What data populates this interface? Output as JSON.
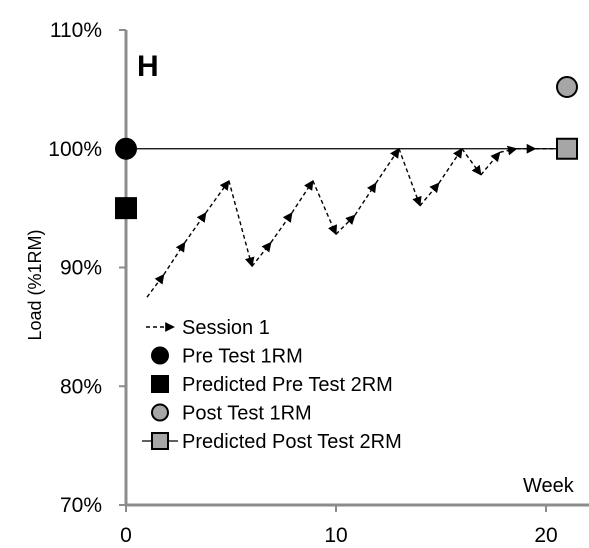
{
  "chart_data": {
    "type": "line",
    "panel_label": "H",
    "ylabel": "Load (%1RM)",
    "x_unit_label": "Week",
    "xlim": [
      0,
      21
    ],
    "ylim": [
      70,
      110
    ],
    "x_ticks": [
      0,
      10,
      20
    ],
    "y_ticks": [
      70,
      80,
      90,
      100,
      110
    ],
    "y_tick_labels": [
      "70%",
      "80%",
      "90%",
      "100%",
      "110%"
    ],
    "reference_line": {
      "y": 100,
      "x": [
        0,
        21
      ]
    },
    "series": [
      {
        "name": "Session 1",
        "style": "dashed-arrow",
        "color": "#000000",
        "x": [
          1,
          1.8,
          2.8,
          3.8,
          4.9,
          6,
          6.9,
          7.9,
          8.9,
          10,
          10.9,
          11.9,
          13,
          14,
          14.9,
          16,
          16.9,
          17.8,
          18.6,
          19.5,
          21
        ],
        "y": [
          87.5,
          89.4,
          92.1,
          94.6,
          97.3,
          90.1,
          92.1,
          94.6,
          97.3,
          92.8,
          94.4,
          97.1,
          100,
          95.2,
          97.1,
          100,
          97.8,
          99.7,
          100,
          100,
          100
        ]
      },
      {
        "name": "Pre Test 1RM",
        "marker": "circle",
        "color": "#000000",
        "x": [
          0
        ],
        "y": [
          100
        ]
      },
      {
        "name": "Predicted Pre Test 2RM",
        "marker": "square",
        "color": "#000000",
        "x": [
          0
        ],
        "y": [
          95
        ]
      },
      {
        "name": "Post Test 1RM",
        "marker": "circle",
        "color": "#a6a6a6",
        "x": [
          21
        ],
        "y": [
          105.2
        ]
      },
      {
        "name": "Predicted Post Test 2RM",
        "marker": "square",
        "color": "#a6a6a6",
        "x": [
          21
        ],
        "y": [
          100
        ]
      }
    ]
  }
}
